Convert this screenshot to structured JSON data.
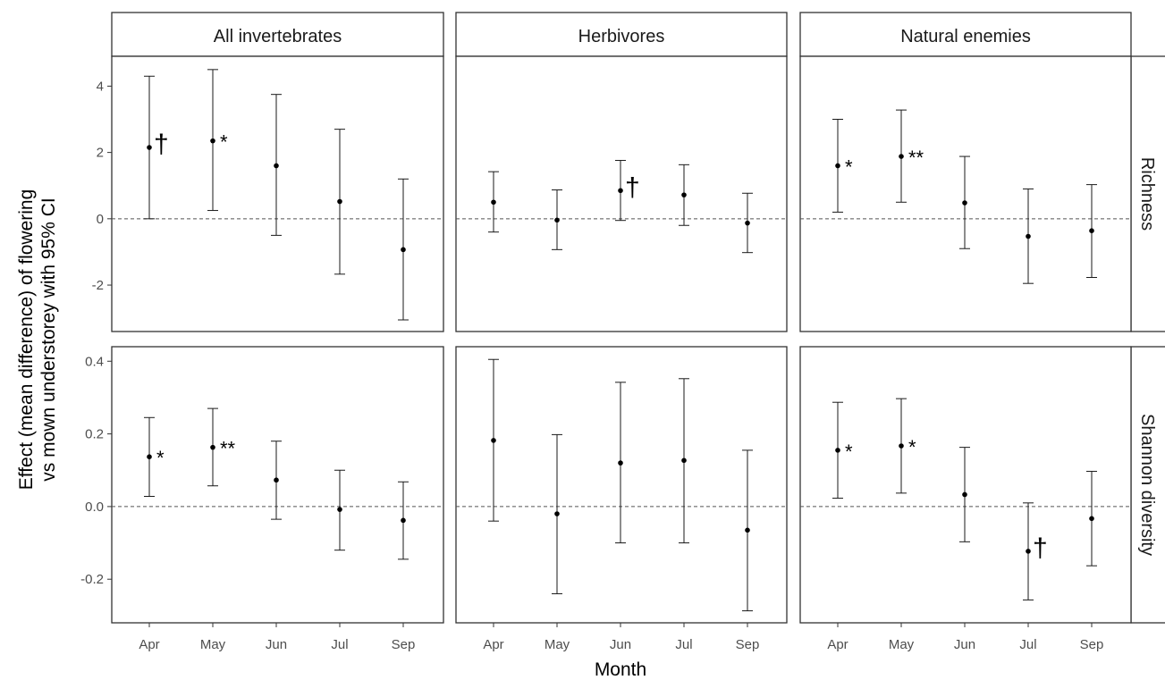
{
  "chart_data": {
    "type": "scatter",
    "style": "point-with-errorbar",
    "xlabel": "Month",
    "ylabel": [
      "Effect (mean difference) of flowering",
      "vs mown understorey with 95% CI"
    ],
    "columns": [
      "All invertebrates",
      "Herbivores",
      "Natural enemies"
    ],
    "rows": [
      "Richness",
      "Shannon diversity"
    ],
    "categories": [
      "Apr",
      "May",
      "Jun",
      "Jul",
      "Sep"
    ],
    "reference_line": 0,
    "panels": [
      {
        "column": "All invertebrates",
        "row": "Richness",
        "ylim": [
          -3.4,
          4.9
        ],
        "yticks": [
          "4",
          "2",
          "0",
          "-2"
        ],
        "ytick_values": [
          4,
          2,
          0,
          -2
        ],
        "points": [
          {
            "x": "Apr",
            "estimate": 2.15,
            "lower": 0.0,
            "upper": 4.3,
            "sig": "†"
          },
          {
            "x": "May",
            "estimate": 2.35,
            "lower": 0.25,
            "upper": 4.5,
            "sig": "*"
          },
          {
            "x": "Jun",
            "estimate": 1.6,
            "lower": -0.5,
            "upper": 3.75,
            "sig": ""
          },
          {
            "x": "Jul",
            "estimate": 0.52,
            "lower": -1.67,
            "upper": 2.7,
            "sig": ""
          },
          {
            "x": "Sep",
            "estimate": -0.93,
            "lower": -3.05,
            "upper": 1.2,
            "sig": ""
          }
        ]
      },
      {
        "column": "Herbivores",
        "row": "Richness",
        "ylim": [
          -3.4,
          4.9
        ],
        "yticks": [],
        "ytick_values": [],
        "points": [
          {
            "x": "Apr",
            "estimate": 0.5,
            "lower": -0.4,
            "upper": 1.42,
            "sig": ""
          },
          {
            "x": "May",
            "estimate": -0.04,
            "lower": -0.93,
            "upper": 0.87,
            "sig": ""
          },
          {
            "x": "Jun",
            "estimate": 0.85,
            "lower": -0.05,
            "upper": 1.76,
            "sig": "†"
          },
          {
            "x": "Jul",
            "estimate": 0.72,
            "lower": -0.2,
            "upper": 1.63,
            "sig": ""
          },
          {
            "x": "Sep",
            "estimate": -0.13,
            "lower": -1.02,
            "upper": 0.77,
            "sig": ""
          }
        ]
      },
      {
        "column": "Natural enemies",
        "row": "Richness",
        "ylim": [
          -3.4,
          4.9
        ],
        "yticks": [],
        "ytick_values": [],
        "points": [
          {
            "x": "Apr",
            "estimate": 1.6,
            "lower": 0.2,
            "upper": 3.0,
            "sig": "*"
          },
          {
            "x": "May",
            "estimate": 1.88,
            "lower": 0.5,
            "upper": 3.28,
            "sig": "**"
          },
          {
            "x": "Jun",
            "estimate": 0.48,
            "lower": -0.9,
            "upper": 1.88,
            "sig": ""
          },
          {
            "x": "Jul",
            "estimate": -0.53,
            "lower": -1.95,
            "upper": 0.9,
            "sig": ""
          },
          {
            "x": "Sep",
            "estimate": -0.36,
            "lower": -1.77,
            "upper": 1.03,
            "sig": ""
          }
        ]
      },
      {
        "column": "All invertebrates",
        "row": "Shannon diversity",
        "ylim": [
          -0.32,
          0.44
        ],
        "yticks": [
          "0.4",
          "0.2",
          "0.0",
          "-0.2"
        ],
        "ytick_values": [
          0.4,
          0.2,
          0.0,
          -0.2
        ],
        "points": [
          {
            "x": "Apr",
            "estimate": 0.137,
            "lower": 0.028,
            "upper": 0.245,
            "sig": "*"
          },
          {
            "x": "May",
            "estimate": 0.163,
            "lower": 0.057,
            "upper": 0.27,
            "sig": "**"
          },
          {
            "x": "Jun",
            "estimate": 0.073,
            "lower": -0.035,
            "upper": 0.18,
            "sig": ""
          },
          {
            "x": "Jul",
            "estimate": -0.008,
            "lower": -0.12,
            "upper": 0.1,
            "sig": ""
          },
          {
            "x": "Sep",
            "estimate": -0.038,
            "lower": -0.145,
            "upper": 0.068,
            "sig": ""
          }
        ]
      },
      {
        "column": "Herbivores",
        "row": "Shannon diversity",
        "ylim": [
          -0.32,
          0.44
        ],
        "yticks": [],
        "ytick_values": [],
        "points": [
          {
            "x": "Apr",
            "estimate": 0.182,
            "lower": -0.04,
            "upper": 0.405,
            "sig": ""
          },
          {
            "x": "May",
            "estimate": -0.02,
            "lower": -0.24,
            "upper": 0.198,
            "sig": ""
          },
          {
            "x": "Jun",
            "estimate": 0.12,
            "lower": -0.1,
            "upper": 0.342,
            "sig": ""
          },
          {
            "x": "Jul",
            "estimate": 0.127,
            "lower": -0.1,
            "upper": 0.352,
            "sig": ""
          },
          {
            "x": "Sep",
            "estimate": -0.065,
            "lower": -0.287,
            "upper": 0.155,
            "sig": ""
          }
        ]
      },
      {
        "column": "Natural enemies",
        "row": "Shannon diversity",
        "ylim": [
          -0.32,
          0.44
        ],
        "yticks": [],
        "ytick_values": [],
        "points": [
          {
            "x": "Apr",
            "estimate": 0.155,
            "lower": 0.023,
            "upper": 0.287,
            "sig": "*"
          },
          {
            "x": "May",
            "estimate": 0.167,
            "lower": 0.037,
            "upper": 0.297,
            "sig": "*"
          },
          {
            "x": "Jun",
            "estimate": 0.033,
            "lower": -0.097,
            "upper": 0.163,
            "sig": ""
          },
          {
            "x": "Jul",
            "estimate": -0.123,
            "lower": -0.257,
            "upper": 0.01,
            "sig": "†"
          },
          {
            "x": "Sep",
            "estimate": -0.033,
            "lower": -0.163,
            "upper": 0.097,
            "sig": ""
          }
        ]
      }
    ]
  }
}
